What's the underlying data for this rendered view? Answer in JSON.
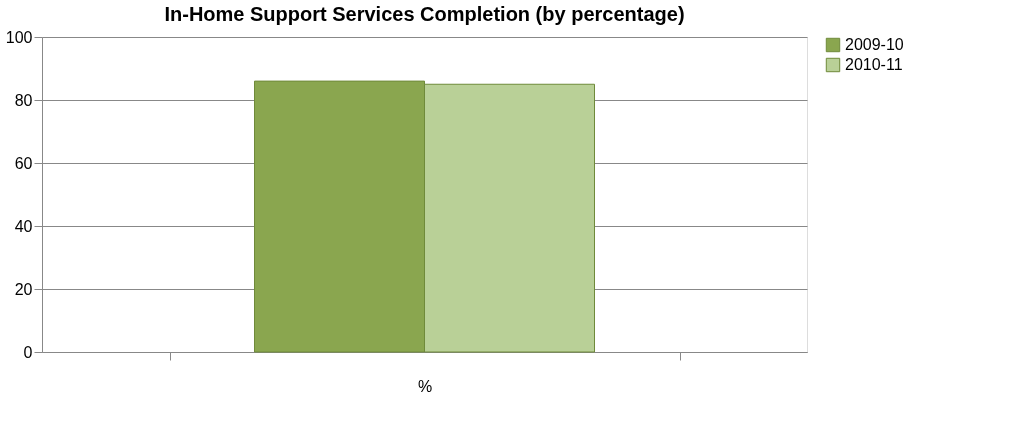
{
  "chart_data": {
    "type": "bar",
    "title": "In-Home Support Services Completion (by percentage)",
    "categories": [
      "%"
    ],
    "series": [
      {
        "name": "2009-10",
        "color": "#8aa64f",
        "values": [
          86
        ]
      },
      {
        "name": "2010-11",
        "color": "#b9d097",
        "values": [
          85
        ]
      }
    ],
    "ylim": [
      0,
      100
    ],
    "yticks": [
      0,
      20,
      40,
      60,
      80,
      100
    ],
    "grid": "y",
    "legend": "right"
  }
}
